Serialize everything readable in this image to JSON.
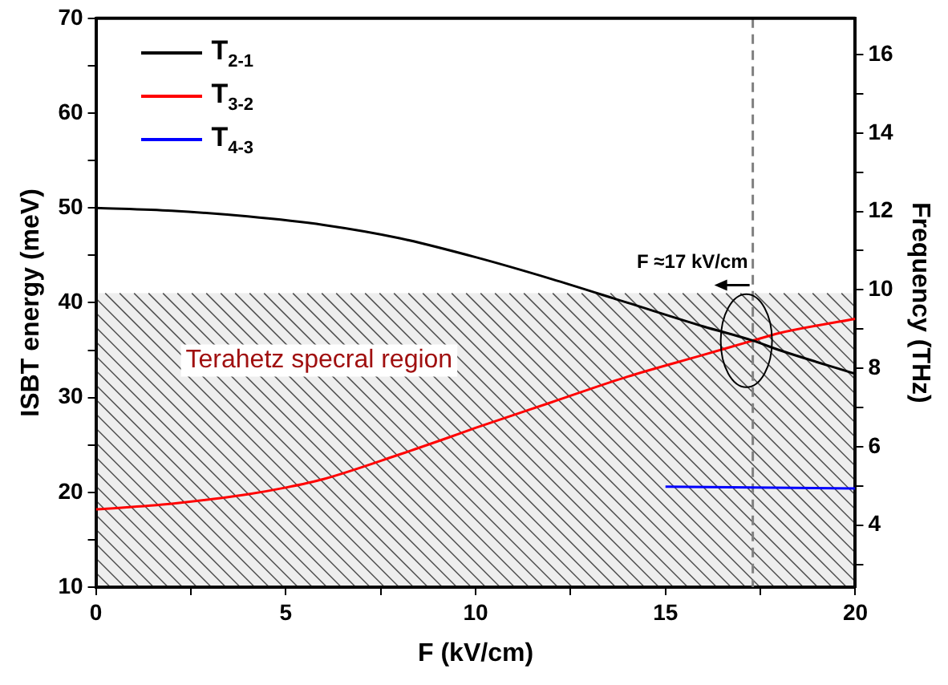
{
  "chart_data": {
    "type": "line",
    "xlabel": "F (kV/cm)",
    "ylabel": "ISBT energy (meV)",
    "y2label": "Frequency (THz)",
    "xlim": [
      0,
      20
    ],
    "xticks": [
      0,
      {
        "value": 2.5,
        "label": null
      },
      5,
      {
        "value": 7.5,
        "label": null
      },
      10,
      {
        "value": 12.5,
        "label": null
      },
      15,
      {
        "value": 17.5,
        "label": null
      },
      20
    ],
    "ylim": [
      10,
      70
    ],
    "yticks": [
      10,
      {
        "value": 15,
        "label": null
      },
      20,
      {
        "value": 25,
        "label": null
      },
      30,
      {
        "value": 35,
        "label": null
      },
      40,
      {
        "value": 45,
        "label": null
      },
      50,
      {
        "value": 55,
        "label": null
      },
      60,
      {
        "value": 65,
        "label": null
      },
      70
    ],
    "y2lim": [
      2.418,
      16.926
    ],
    "y2ticks": [
      {
        "value": 3,
        "label": null
      },
      4,
      {
        "value": 5,
        "label": null
      },
      6,
      {
        "value": 7,
        "label": null
      },
      8,
      {
        "value": 9,
        "label": null
      },
      10,
      {
        "value": 11,
        "label": null
      },
      12,
      {
        "value": 13,
        "label": null
      },
      14,
      {
        "value": 15,
        "label": null
      },
      16
    ],
    "series": [
      {
        "name": "T$_{2-1}$",
        "color": "#000000",
        "x": [
          0,
          2,
          4,
          6,
          8,
          10,
          12,
          14,
          16,
          17.3,
          18,
          20
        ],
        "values": [
          50,
          49.7,
          49.1,
          48.2,
          46.8,
          44.8,
          42.5,
          40.0,
          37.5,
          36.0,
          35.0,
          32.5
        ]
      },
      {
        "name": "T$_{3-2}$",
        "color": "#ff0000",
        "x": [
          0,
          2,
          4,
          5,
          6,
          8,
          9.3,
          10,
          12,
          14,
          16,
          17.3,
          18,
          20
        ],
        "values": [
          18.2,
          18.8,
          19.8,
          20.5,
          21.4,
          24.0,
          25.8,
          26.8,
          29.5,
          32.2,
          34.5,
          36.0,
          36.8,
          38.3
        ]
      },
      {
        "name": "T$_{4-3}$",
        "color": "#0000ff",
        "x": [
          15,
          20
        ],
        "values": [
          20.6,
          20.4
        ]
      }
    ],
    "bands": [
      {
        "axis": "y",
        "from": 10,
        "to": 41,
        "label": "Terahetz specral region",
        "color": "#555555"
      }
    ],
    "ref_lines": [
      {
        "axis": "x",
        "value": 17.3,
        "label": "F ≈17 kV/cm",
        "color": "#808080",
        "line_style": "dashed"
      }
    ],
    "legend": "top left",
    "grid": false,
    "line_style": "solid",
    "marker": "none"
  }
}
